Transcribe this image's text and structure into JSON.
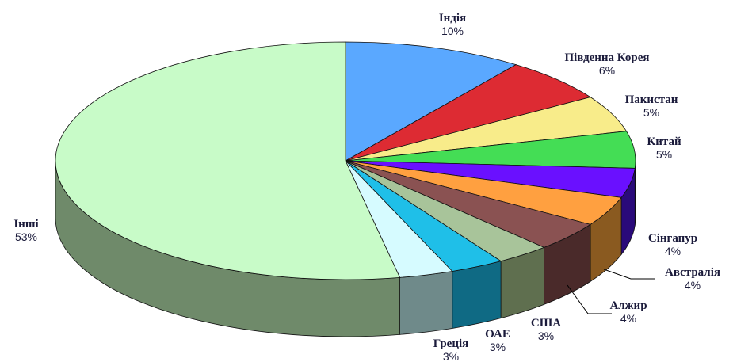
{
  "chart_data": {
    "type": "pie",
    "style": "3d",
    "slices": [
      {
        "name": "Індія",
        "value": 10,
        "label": "10%",
        "color": "#5aa8ff",
        "side": "#2f5f9a"
      },
      {
        "name": "Південна Корея",
        "value": 6,
        "label": "6%",
        "color": "#dd2b33",
        "side": "#7a1a1e"
      },
      {
        "name": "Пакистан",
        "value": 5,
        "label": "5%",
        "color": "#f8ec8a",
        "side": "#9a8f4a"
      },
      {
        "name": "Китай",
        "value": 5,
        "label": "5%",
        "color": "#44dd55",
        "side": "#257a2f"
      },
      {
        "name": "Сінгапур",
        "value": 4,
        "label": "4%",
        "color": "#6a10ff",
        "side": "#2a0a7a"
      },
      {
        "name": "Австралія",
        "value": 4,
        "label": "4%",
        "color": "#ffa040",
        "side": "#8a5a20"
      },
      {
        "name": "Алжир",
        "value": 4,
        "label": "4%",
        "color": "#8a5252",
        "side": "#4a2a2a"
      },
      {
        "name": "США",
        "value": 3,
        "label": "3%",
        "color": "#a8c49a",
        "side": "#5f6f4f"
      },
      {
        "name": "ОАЕ",
        "value": 3,
        "label": "3%",
        "color": "#1fbfe8",
        "side": "#0f6a84"
      },
      {
        "name": "Греція",
        "value": 3,
        "label": "3%",
        "color": "#d6fbff",
        "side": "#6f8a8a"
      },
      {
        "name": "Інші",
        "value": 53,
        "label": "53%",
        "color": "#c8fbc8",
        "side": "#6f8a6a"
      }
    ]
  }
}
